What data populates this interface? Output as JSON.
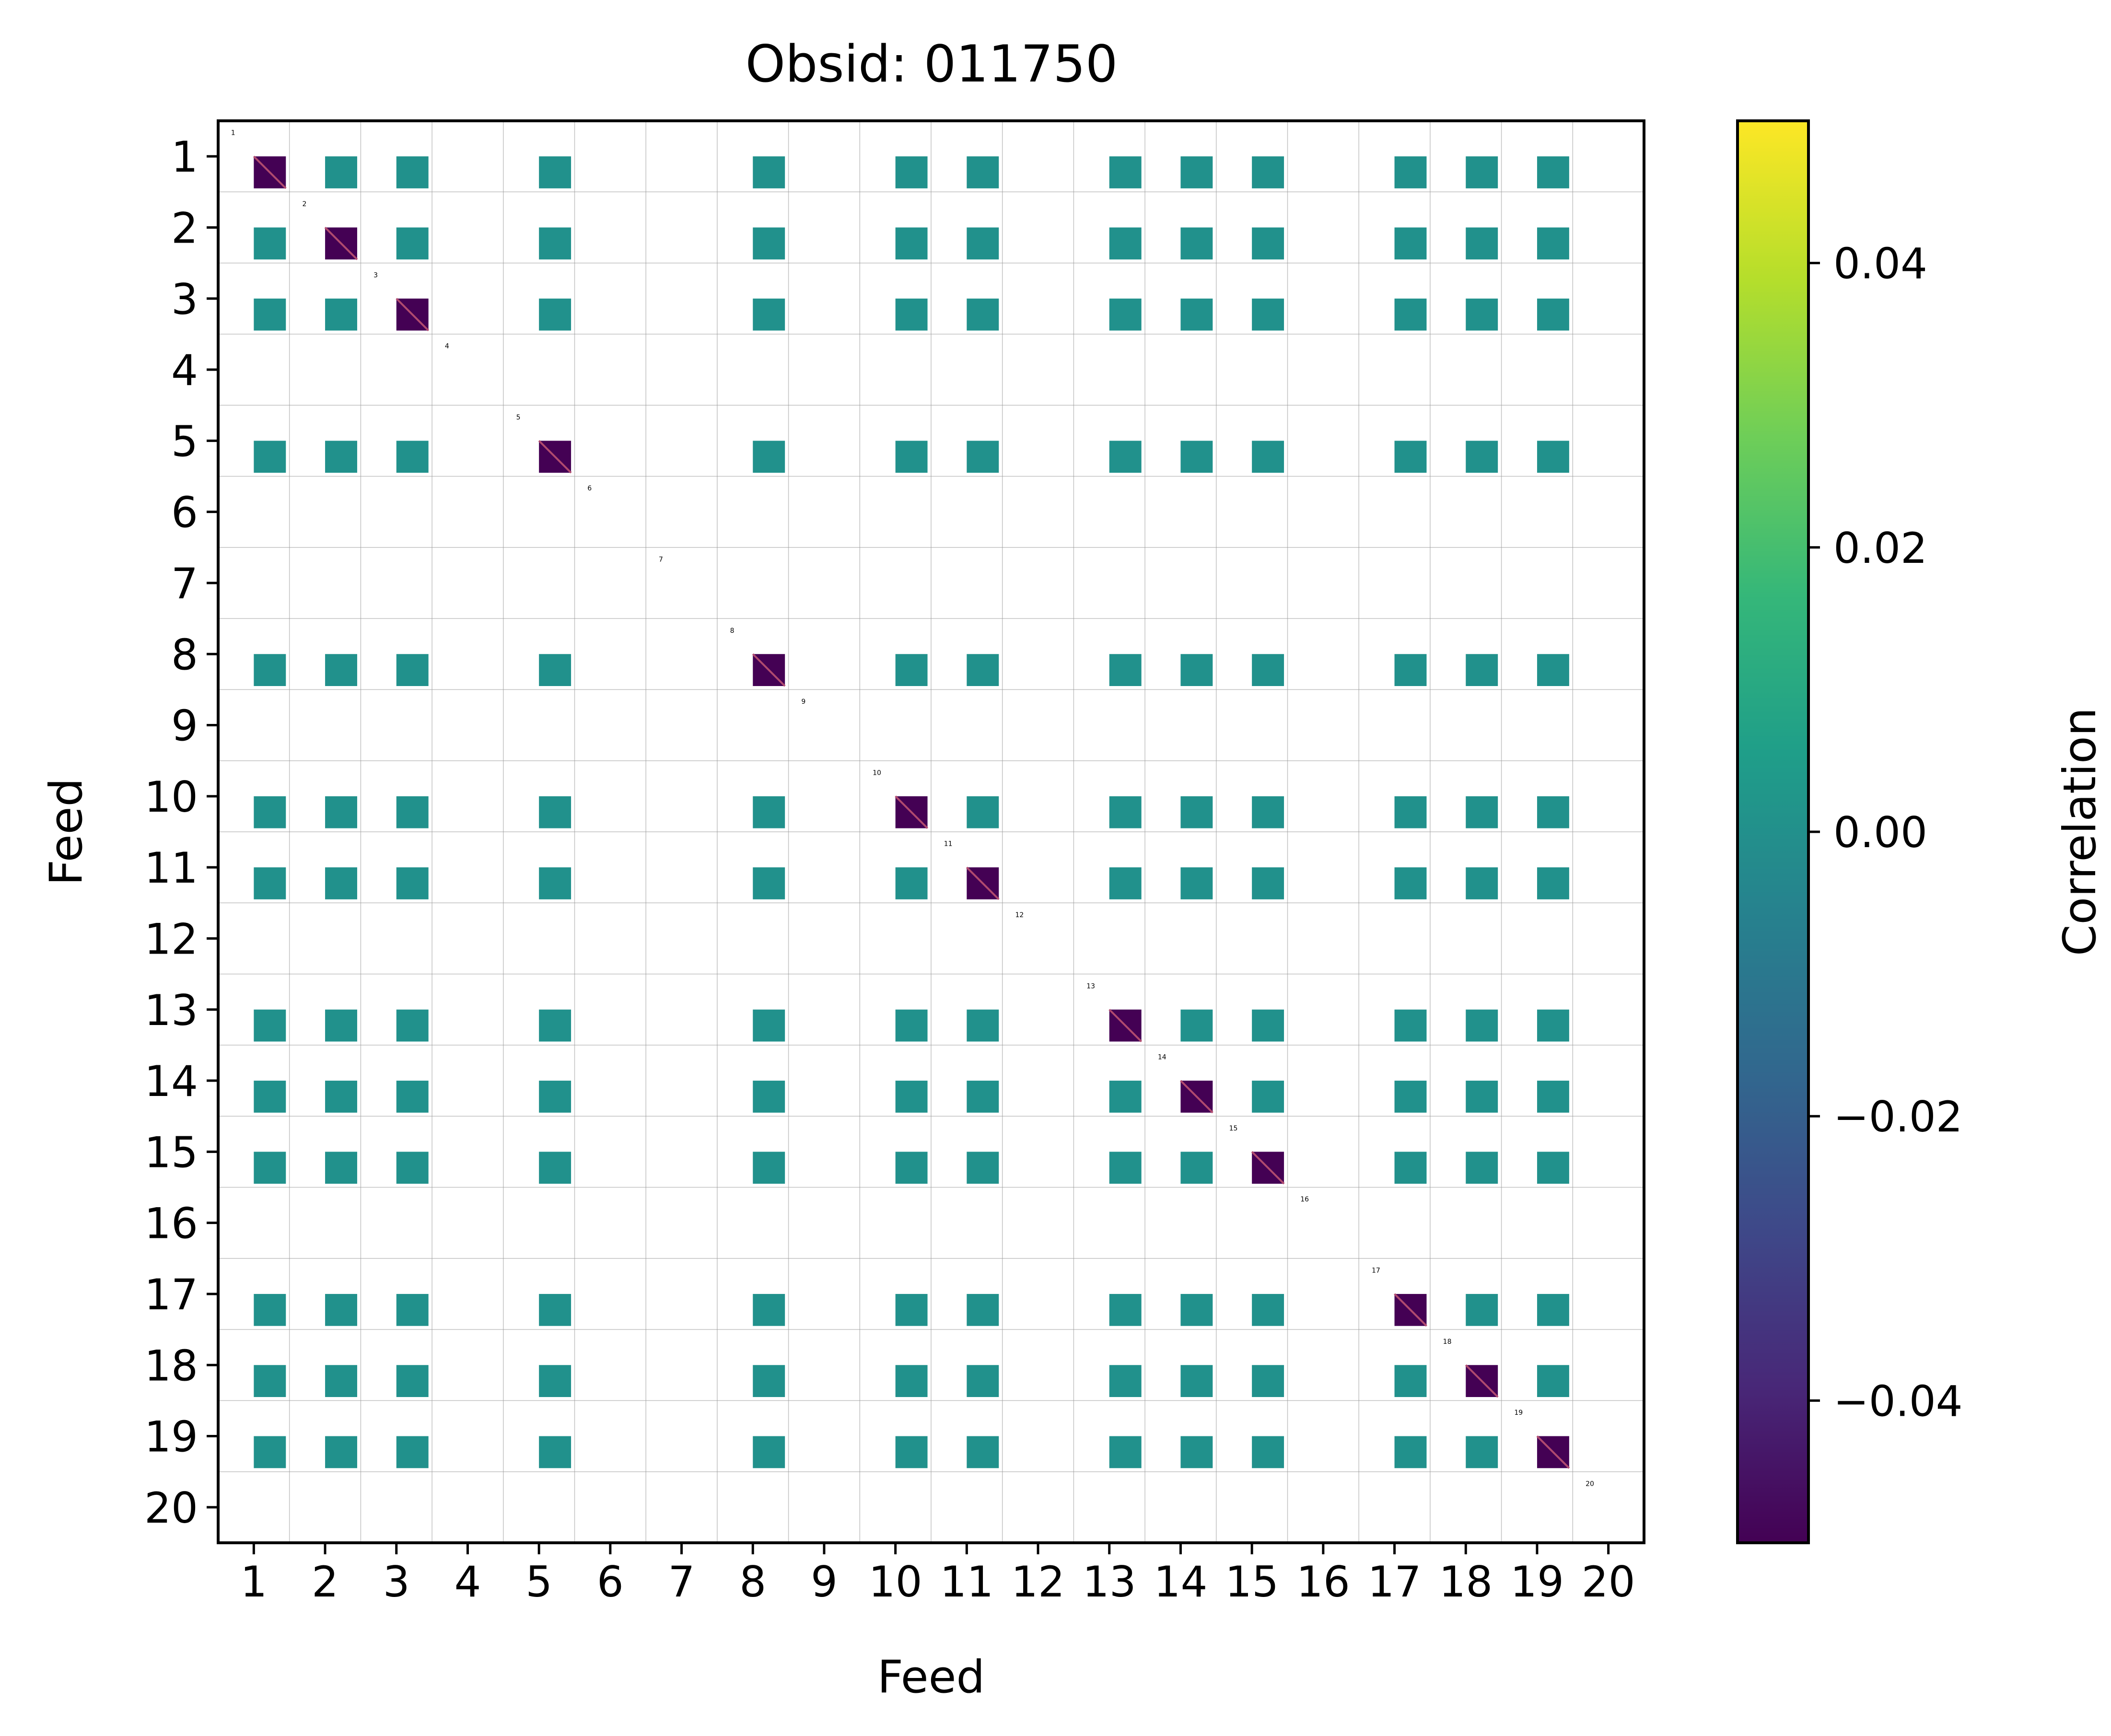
{
  "chart_data": {
    "type": "heatmap",
    "title": "Obsid: 011750",
    "xlabel": "Feed",
    "ylabel": "Feed",
    "x_ticks": [
      "1",
      "2",
      "3",
      "4",
      "5",
      "6",
      "7",
      "8",
      "9",
      "10",
      "11",
      "12",
      "13",
      "14",
      "15",
      "16",
      "17",
      "18",
      "19",
      "20"
    ],
    "y_ticks": [
      "1",
      "2",
      "3",
      "4",
      "5",
      "6",
      "7",
      "8",
      "9",
      "10",
      "11",
      "12",
      "13",
      "14",
      "15",
      "16",
      "17",
      "18",
      "19",
      "20"
    ],
    "feeds": [
      1,
      2,
      3,
      4,
      5,
      6,
      7,
      8,
      9,
      10,
      11,
      12,
      13,
      14,
      15,
      16,
      17,
      18,
      19,
      20
    ],
    "active_feeds": [
      1,
      2,
      3,
      5,
      8,
      10,
      11,
      13,
      14,
      15,
      17,
      18,
      19
    ],
    "value_shown_off_diagonal": 0.0,
    "diagonal_value": -0.05,
    "colorbar": {
      "label": "Correlation",
      "range": [
        -0.05,
        0.05
      ],
      "ticks": [
        -0.04,
        -0.02,
        0.0,
        0.02,
        0.04
      ],
      "tick_labels": [
        "−0.04",
        "−0.02",
        "0.00",
        "0.02",
        "0.04"
      ],
      "colormap": "viridis"
    },
    "grid": true
  },
  "colors": {
    "block": "#21918c",
    "diagonal": "#440154",
    "diagonal_line": "#b04a6e",
    "grid": "#9a9a9a",
    "viridis": [
      "#440154",
      "#482878",
      "#3e4989",
      "#31688e",
      "#26828e",
      "#1f9e89",
      "#35b779",
      "#6ece58",
      "#b5de2b",
      "#fde725"
    ]
  }
}
